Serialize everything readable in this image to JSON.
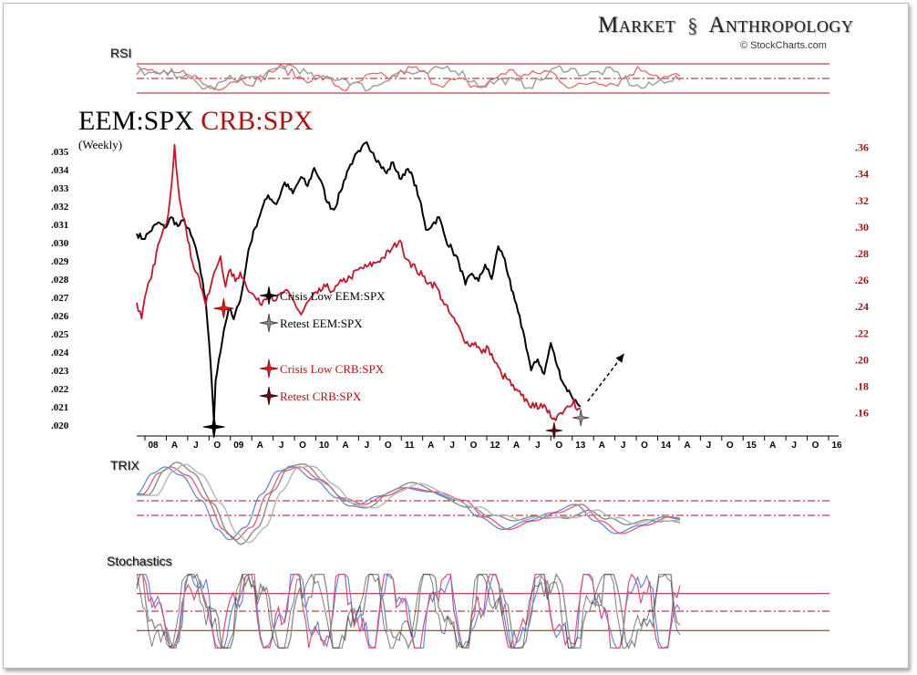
{
  "branding": {
    "left": "Market",
    "right": "Anthropology",
    "credit": "© StockCharts.com"
  },
  "panels": {
    "rsi_label": "RSI",
    "trix_label": "TRIX",
    "stoch_label": "Stochastics"
  },
  "title": {
    "series1": "EEM:SPX",
    "series2": "CRB:SPX",
    "period": "(Weekly)"
  },
  "legend": [
    {
      "label": "Crisis Low  EEM:SPX",
      "marker": "black-star"
    },
    {
      "label": "Retest  EEM:SPX",
      "marker": "grey-star"
    },
    {
      "label": "Crisis Low  CRB:SPX",
      "marker": "red-star"
    },
    {
      "label": "Retest  CRB:SPX",
      "marker": "darkred-star"
    }
  ],
  "colors": {
    "eem": "#000000",
    "crb": "#c0182a",
    "grid": "#a31515",
    "trix_blue": "#5a7fd8",
    "grey": "#9a9a9a"
  },
  "chart_data": {
    "type": "line",
    "title": "EEM:SPX CRB:SPX (Weekly)",
    "x_ticks": [
      "08",
      "A",
      "J",
      "O",
      "09",
      "A",
      "J",
      "O",
      "10",
      "A",
      "J",
      "O",
      "11",
      "A",
      "J",
      "O",
      "12",
      "A",
      "J",
      "O",
      "13",
      "A",
      "J",
      "O",
      "14",
      "A",
      "J",
      "O",
      "15",
      "A",
      "J",
      "O",
      "16"
    ],
    "left_axis": {
      "ticks": [
        ".035",
        ".034",
        ".033",
        ".032",
        ".031",
        ".030",
        ".029",
        ".028",
        ".027",
        ".026",
        ".025",
        ".024",
        ".023",
        ".022",
        ".021",
        ".020"
      ],
      "ylim": [
        0.0198,
        0.0358
      ]
    },
    "right_axis": {
      "ticks": [
        ".36",
        ".34",
        ".32",
        ".30",
        ".28",
        ".26",
        ".24",
        ".22",
        ".20",
        ".18",
        ".16"
      ],
      "ylim": [
        0.148,
        0.368
      ]
    },
    "series": [
      {
        "name": "EEM:SPX",
        "axis": "left",
        "points": [
          [
            0,
            0.0305
          ],
          [
            4,
            0.0302
          ],
          [
            8,
            0.0306
          ],
          [
            13,
            0.0311
          ],
          [
            17,
            0.0308
          ],
          [
            21,
            0.0314
          ],
          [
            25,
            0.0309
          ],
          [
            29,
            0.0312
          ],
          [
            33,
            0.0304
          ],
          [
            36,
            0.0297
          ],
          [
            39,
            0.0283
          ],
          [
            42,
            0.0268
          ],
          [
            44,
            0.0246
          ],
          [
            46,
            0.0218
          ],
          [
            47,
            0.0202
          ],
          [
            48,
            0.0224
          ],
          [
            50,
            0.0236
          ],
          [
            53,
            0.0252
          ],
          [
            56,
            0.0264
          ],
          [
            59,
            0.0258
          ],
          [
            62,
            0.0266
          ],
          [
            65,
            0.0278
          ],
          [
            68,
            0.0296
          ],
          [
            72,
            0.0308
          ],
          [
            76,
            0.0318
          ],
          [
            80,
            0.0326
          ],
          [
            85,
            0.0321
          ],
          [
            90,
            0.0333
          ],
          [
            95,
            0.0327
          ],
          [
            100,
            0.0336
          ],
          [
            104,
            0.0331
          ],
          [
            108,
            0.0341
          ],
          [
            112,
            0.0334
          ],
          [
            116,
            0.0322
          ],
          [
            120,
            0.0318
          ],
          [
            124,
            0.0328
          ],
          [
            128,
            0.0339
          ],
          [
            132,
            0.0346
          ],
          [
            136,
            0.035
          ],
          [
            140,
            0.0355
          ],
          [
            144,
            0.0349
          ],
          [
            148,
            0.0343
          ],
          [
            152,
            0.0338
          ],
          [
            156,
            0.0344
          ],
          [
            160,
            0.0335
          ],
          [
            164,
            0.034
          ],
          [
            168,
            0.0336
          ],
          [
            172,
            0.0324
          ],
          [
            176,
            0.0307
          ],
          [
            180,
            0.031
          ],
          [
            184,
            0.0314
          ],
          [
            188,
            0.0302
          ],
          [
            192,
            0.0296
          ],
          [
            196,
            0.0289
          ],
          [
            200,
            0.0277
          ],
          [
            204,
            0.0283
          ],
          [
            208,
            0.0279
          ],
          [
            212,
            0.0288
          ],
          [
            216,
            0.028
          ],
          [
            220,
            0.0298
          ],
          [
            224,
            0.0291
          ],
          [
            228,
            0.0274
          ],
          [
            232,
            0.0262
          ],
          [
            236,
            0.0248
          ],
          [
            240,
            0.023
          ],
          [
            244,
            0.0236
          ],
          [
            248,
            0.0228
          ],
          [
            252,
            0.0245
          ],
          [
            256,
            0.0232
          ],
          [
            260,
            0.0222
          ],
          [
            264,
            0.0217
          ],
          [
            268,
            0.0212
          ],
          [
            270,
            0.021
          ]
        ]
      },
      {
        "name": "CRB:SPX",
        "axis": "right",
        "points": [
          [
            0,
            0.243
          ],
          [
            3,
            0.231
          ],
          [
            6,
            0.252
          ],
          [
            9,
            0.262
          ],
          [
            12,
            0.281
          ],
          [
            15,
            0.293
          ],
          [
            18,
            0.302
          ],
          [
            21,
            0.33
          ],
          [
            23,
            0.362
          ],
          [
            25,
            0.333
          ],
          [
            27,
            0.315
          ],
          [
            29,
            0.306
          ],
          [
            31,
            0.29
          ],
          [
            34,
            0.273
          ],
          [
            37,
            0.265
          ],
          [
            40,
            0.252
          ],
          [
            42,
            0.241
          ],
          [
            45,
            0.255
          ],
          [
            48,
            0.268
          ],
          [
            51,
            0.278
          ],
          [
            54,
            0.255
          ],
          [
            57,
            0.268
          ],
          [
            60,
            0.259
          ],
          [
            63,
            0.266
          ],
          [
            66,
            0.258
          ],
          [
            70,
            0.25
          ],
          [
            75,
            0.242
          ],
          [
            80,
            0.25
          ],
          [
            85,
            0.245
          ],
          [
            90,
            0.252
          ],
          [
            95,
            0.245
          ],
          [
            100,
            0.234
          ],
          [
            105,
            0.245
          ],
          [
            110,
            0.25
          ],
          [
            115,
            0.255
          ],
          [
            120,
            0.252
          ],
          [
            125,
            0.259
          ],
          [
            130,
            0.262
          ],
          [
            135,
            0.268
          ],
          [
            140,
            0.27
          ],
          [
            145,
            0.273
          ],
          [
            150,
            0.277
          ],
          [
            155,
            0.283
          ],
          [
            160,
            0.29
          ],
          [
            162,
            0.282
          ],
          [
            166,
            0.274
          ],
          [
            170,
            0.268
          ],
          [
            174,
            0.263
          ],
          [
            178,
            0.258
          ],
          [
            182,
            0.256
          ],
          [
            186,
            0.245
          ],
          [
            190,
            0.236
          ],
          [
            194,
            0.228
          ],
          [
            198,
            0.219
          ],
          [
            202,
            0.211
          ],
          [
            206,
            0.213
          ],
          [
            210,
            0.205
          ],
          [
            214,
            0.209
          ],
          [
            218,
            0.198
          ],
          [
            222,
            0.189
          ],
          [
            226,
            0.185
          ],
          [
            230,
            0.177
          ],
          [
            234,
            0.173
          ],
          [
            238,
            0.168
          ],
          [
            242,
            0.164
          ],
          [
            246,
            0.167
          ],
          [
            250,
            0.16
          ],
          [
            254,
            0.156
          ],
          [
            258,
            0.16
          ],
          [
            262,
            0.165
          ],
          [
            266,
            0.17
          ],
          [
            268,
            0.162
          ],
          [
            270,
            0.163
          ]
        ]
      }
    ],
    "annotations": [
      {
        "label": "Crisis Low  EEM:SPX",
        "x": 47,
        "axis": "left",
        "value": 0.0201
      },
      {
        "label": "Retest  EEM:SPX",
        "x": 268,
        "axis": "left",
        "value": 0.0207
      },
      {
        "label": "Crisis Low  CRB:SPX",
        "x": 54,
        "axis": "right",
        "value": 0.238
      },
      {
        "label": "Retest  CRB:SPX",
        "x": 254,
        "axis": "right",
        "value": 0.148
      },
      {
        "label": "projection arrow",
        "x0": 270,
        "y0_axis": "left",
        "y0": 0.021,
        "x1": 292,
        "y1": 0.0238
      }
    ],
    "rsi_levels": [
      70,
      50,
      30
    ],
    "stoch_levels": [
      80,
      50,
      20
    ],
    "indicator_x_range": [
      0,
      270
    ]
  }
}
